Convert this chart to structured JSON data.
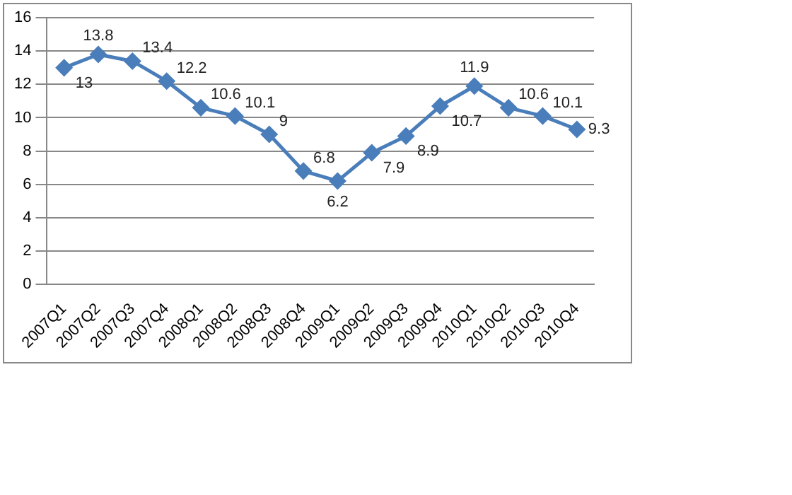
{
  "chart_data": {
    "type": "line",
    "categories": [
      "2007Q1",
      "2007Q2",
      "2007Q3",
      "2007Q4",
      "2008Q1",
      "2008Q2",
      "2008Q3",
      "2008Q4",
      "2009Q1",
      "2009Q2",
      "2009Q3",
      "2009Q4",
      "2010Q1",
      "2010Q2",
      "2010Q3",
      "2010Q4"
    ],
    "series": [
      {
        "color": "#4a7ebb",
        "values": [
          13,
          13.8,
          13.4,
          12.2,
          10.6,
          10.1,
          9,
          6.8,
          6.2,
          7.9,
          8.9,
          10.7,
          11.9,
          10.6,
          10.1,
          9.3
        ]
      }
    ],
    "ylim": [
      0,
      16
    ],
    "yticks": [
      0,
      2,
      4,
      6,
      8,
      10,
      12,
      14,
      16
    ],
    "grid": "y",
    "legend": false,
    "marker": "diamond",
    "line_style": "solid",
    "data_labels": true
  }
}
